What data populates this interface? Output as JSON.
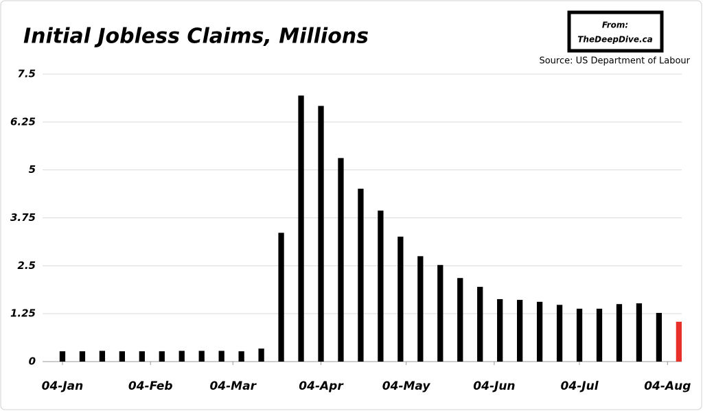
{
  "chart_data": {
    "type": "bar",
    "title": "Initial Jobless Claims, Millions",
    "badge_label": "From:",
    "badge_site": "TheDeepDive.ca",
    "source": "Source: US Department of Labour",
    "x": [
      0,
      7,
      14,
      21,
      28,
      35,
      42,
      49,
      56,
      63,
      70,
      77,
      84,
      91,
      98,
      105,
      112,
      119,
      126,
      133,
      140,
      147,
      154,
      161,
      168,
      175,
      182,
      189,
      196,
      203,
      210,
      217
    ],
    "values": [
      0.27,
      0.27,
      0.28,
      0.27,
      0.27,
      0.27,
      0.28,
      0.28,
      0.28,
      0.27,
      0.34,
      3.36,
      6.94,
      6.67,
      5.31,
      4.51,
      3.94,
      3.26,
      2.75,
      2.52,
      2.18,
      1.95,
      1.63,
      1.61,
      1.56,
      1.48,
      1.38,
      1.38,
      1.5,
      1.52,
      1.27,
      1.04
    ],
    "colors": [
      "#000000",
      "#000000",
      "#000000",
      "#000000",
      "#000000",
      "#000000",
      "#000000",
      "#000000",
      "#000000",
      "#000000",
      "#000000",
      "#000000",
      "#000000",
      "#000000",
      "#000000",
      "#000000",
      "#000000",
      "#000000",
      "#000000",
      "#000000",
      "#000000",
      "#000000",
      "#000000",
      "#000000",
      "#000000",
      "#000000",
      "#000000",
      "#000000",
      "#000000",
      "#000000",
      "#000000",
      "#e8302a"
    ],
    "xlim": [
      -7,
      218
    ],
    "xticks": [
      {
        "value": 0,
        "label": "04-Jan"
      },
      {
        "value": 31,
        "label": "04-Feb"
      },
      {
        "value": 60,
        "label": "04-Mar"
      },
      {
        "value": 91,
        "label": "04-Apr"
      },
      {
        "value": 121,
        "label": "04-May"
      },
      {
        "value": 152,
        "label": "04-Jun"
      },
      {
        "value": 182,
        "label": "04-Jul"
      },
      {
        "value": 213,
        "label": "04-Aug"
      }
    ],
    "ylim": [
      0,
      7.5
    ],
    "yticks": [
      0,
      1.25,
      2.5,
      3.75,
      5,
      6.25,
      7.5
    ],
    "grid": true
  }
}
